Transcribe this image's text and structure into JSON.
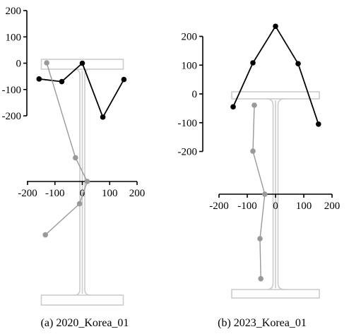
{
  "chart_data": [
    {
      "type": "line",
      "caption": "(a) 2020_Korea_01",
      "y_axis": {
        "range": [
          -200,
          200
        ],
        "ticks": [
          "200",
          "100",
          "0",
          "-100",
          "-200"
        ]
      },
      "x_axis": {
        "range": [
          -200,
          200
        ],
        "ticks": [
          "-200",
          "-100",
          "0",
          "100",
          "200"
        ]
      },
      "series": [
        {
          "color": "#000000",
          "points": [
            [
              -158,
              -60
            ],
            [
              -75,
              -70
            ],
            [
              0,
              0
            ],
            [
              75,
              -205
            ],
            [
              152,
              -62
            ]
          ]
        },
        {
          "color": "#999999",
          "points": [
            [
              -130,
              80
            ],
            [
              -25,
              16
            ],
            [
              18,
              0
            ],
            [
              -10,
              -15
            ],
            [
              -135,
              -36
            ]
          ]
        }
      ],
      "grid": false,
      "background_figure": "I-beam cross-section (light gray outline)"
    },
    {
      "type": "line",
      "caption": "(b) 2023_Korea_01",
      "y_axis": {
        "range": [
          -200,
          200
        ],
        "ticks": [
          "200",
          "100",
          "0",
          "-100",
          "-200"
        ]
      },
      "x_axis": {
        "range": [
          -200,
          200
        ],
        "ticks": [
          "-200",
          "-100",
          "0",
          "100",
          "200"
        ]
      },
      "series": [
        {
          "color": "#000000",
          "points": [
            [
              -150,
              -45
            ],
            [
              -80,
              108
            ],
            [
              0,
              235
            ],
            [
              80,
              105
            ],
            [
              152,
              -105
            ]
          ]
        },
        {
          "color": "#999999",
          "points": [
            [
              -75,
              60
            ],
            [
              -80,
              29
            ],
            [
              -38,
              0
            ],
            [
              -55,
              -30
            ],
            [
              -52,
              -57
            ]
          ]
        }
      ],
      "grid": false,
      "background_figure": "I-beam cross-section (light gray outline)"
    }
  ]
}
